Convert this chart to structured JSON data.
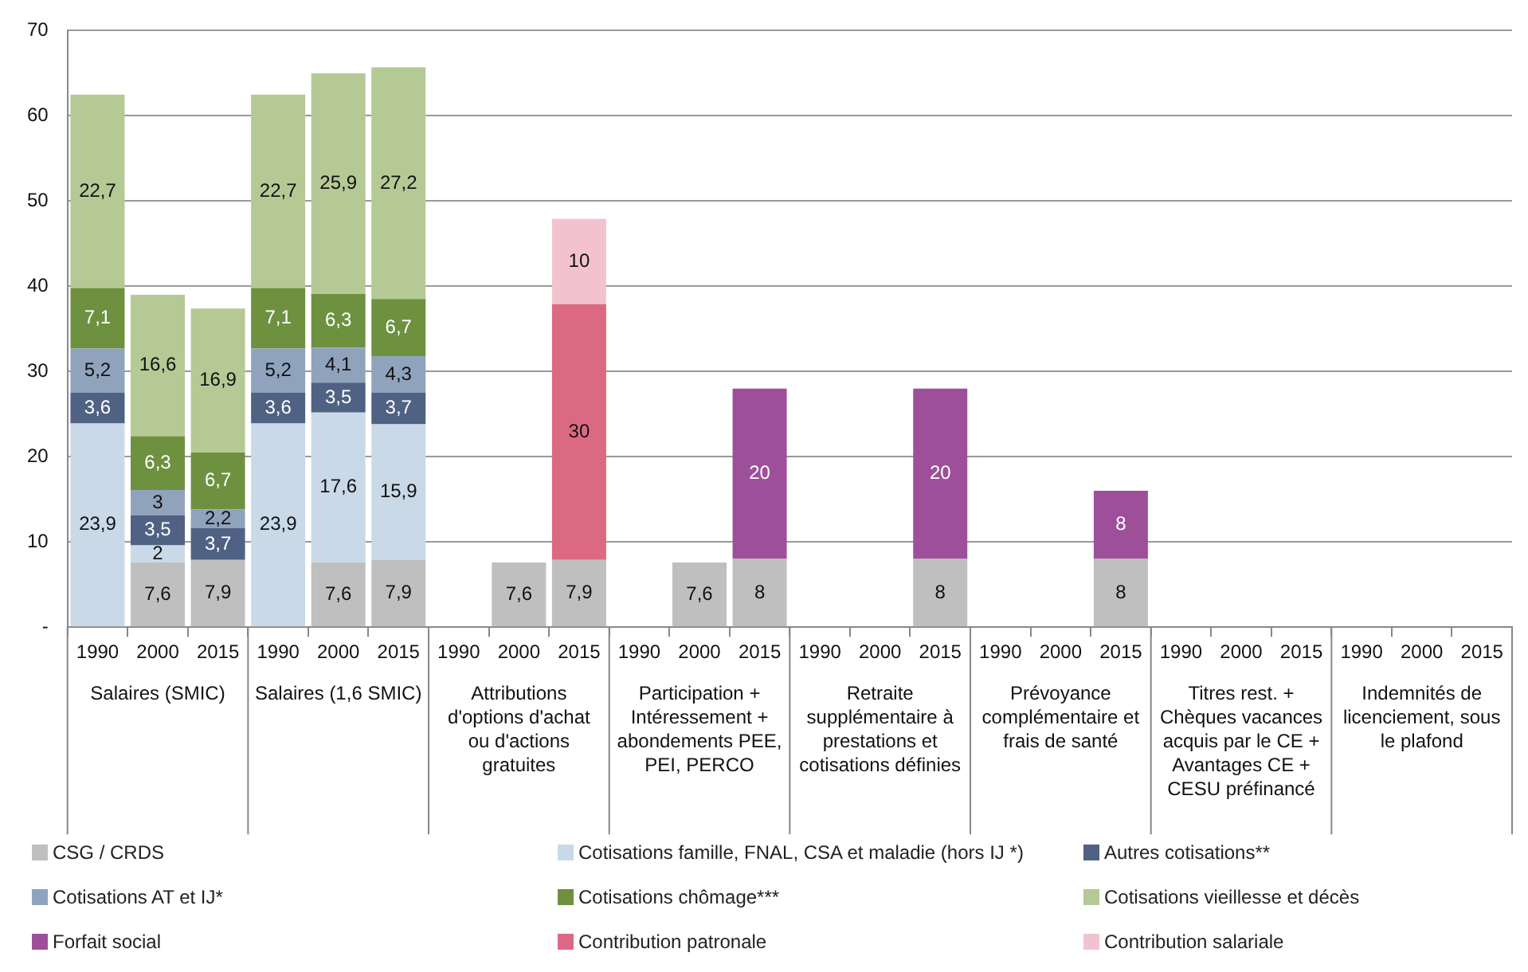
{
  "chart_data": {
    "type": "bar",
    "stacked": true,
    "grid": "y",
    "legend": "bottom",
    "categories": [
      "1990",
      "2000",
      "2015",
      "1990",
      "2000",
      "2015",
      "1990",
      "2000",
      "2015",
      "1990",
      "2000",
      "2015",
      "1990",
      "2000",
      "2015",
      "1990",
      "2000",
      "2015",
      "1990",
      "2000",
      "2015",
      "1990",
      "2000",
      "2015"
    ],
    "ylim": [
      0,
      70
    ],
    "yticks": [
      {
        "value": 0,
        "label": "-"
      },
      10,
      20,
      30,
      40,
      50,
      60,
      70
    ],
    "series": [
      {
        "name": "CSG / CRDS",
        "color": "#bfbfbf",
        "values": [
          null,
          7.6,
          7.9,
          null,
          7.6,
          7.9,
          null,
          7.6,
          7.9,
          null,
          7.6,
          8,
          null,
          null,
          8,
          null,
          null,
          8,
          null,
          null,
          null,
          null,
          null,
          null
        ],
        "value_labels": [
          null,
          "7,6",
          "7,9",
          null,
          "7,6",
          "7,9",
          null,
          "7,6",
          "7,9",
          null,
          "7,6",
          "8",
          null,
          null,
          "8",
          null,
          null,
          "8",
          null,
          null,
          null,
          null,
          null,
          null
        ]
      },
      {
        "name": "Cotisations famille, FNAL, CSA et maladie (hors  IJ *)",
        "color": "#c9d9e8",
        "values": [
          23.9,
          2,
          null,
          23.9,
          17.6,
          15.9,
          null,
          null,
          null,
          null,
          null,
          null,
          null,
          null,
          null,
          null,
          null,
          null,
          null,
          null,
          null,
          null,
          null,
          null
        ],
        "value_labels": [
          "23,9",
          "2",
          null,
          "23,9",
          "17,6",
          "15,9",
          null,
          null,
          null,
          null,
          null,
          null,
          null,
          null,
          null,
          null,
          null,
          null,
          null,
          null,
          null,
          null,
          null,
          null
        ]
      },
      {
        "name": "Autres cotisations**",
        "color": "#4f6283",
        "values": [
          3.6,
          3.5,
          3.7,
          3.6,
          3.5,
          3.7,
          null,
          null,
          null,
          null,
          null,
          null,
          null,
          null,
          null,
          null,
          null,
          null,
          null,
          null,
          null,
          null,
          null,
          null
        ],
        "value_labels": [
          "3,6",
          "3,5",
          "3,7",
          "3,6",
          "3,5",
          "3,7",
          null,
          null,
          null,
          null,
          null,
          null,
          null,
          null,
          null,
          null,
          null,
          null,
          null,
          null,
          null,
          null,
          null,
          null
        ]
      },
      {
        "name": "Cotisations AT et IJ*",
        "color": "#8fa3bd",
        "values": [
          5.2,
          3,
          2.2,
          5.2,
          4.1,
          4.3,
          null,
          null,
          null,
          null,
          null,
          null,
          null,
          null,
          null,
          null,
          null,
          null,
          null,
          null,
          null,
          null,
          null,
          null
        ],
        "value_labels": [
          "5,2",
          "3",
          "2,2",
          "5,2",
          "4,1",
          "4,3",
          null,
          null,
          null,
          null,
          null,
          null,
          null,
          null,
          null,
          null,
          null,
          null,
          null,
          null,
          null,
          null,
          null,
          null
        ]
      },
      {
        "name": "Cotisations chômage***",
        "color": "#6e9140",
        "values": [
          7.1,
          6.3,
          6.7,
          7.1,
          6.3,
          6.7,
          null,
          null,
          null,
          null,
          null,
          null,
          null,
          null,
          null,
          null,
          null,
          null,
          null,
          null,
          null,
          null,
          null,
          null
        ],
        "value_labels": [
          "7,1",
          "6,3",
          "6,7",
          "7,1",
          "6,3",
          "6,7",
          null,
          null,
          null,
          null,
          null,
          null,
          null,
          null,
          null,
          null,
          null,
          null,
          null,
          null,
          null,
          null,
          null,
          null
        ]
      },
      {
        "name": "Cotisations vieillesse et décès",
        "color": "#b5c995",
        "values": [
          22.7,
          16.6,
          16.9,
          22.7,
          25.9,
          27.2,
          null,
          null,
          null,
          null,
          null,
          null,
          null,
          null,
          null,
          null,
          null,
          null,
          null,
          null,
          null,
          null,
          null,
          null
        ],
        "value_labels": [
          "22,7",
          "16,6",
          "16,9",
          "22,7",
          "25,9",
          "27,2",
          null,
          null,
          null,
          null,
          null,
          null,
          null,
          null,
          null,
          null,
          null,
          null,
          null,
          null,
          null,
          null,
          null,
          null
        ]
      },
      {
        "name": "Forfait social",
        "color": "#9e4f9a",
        "values": [
          null,
          null,
          null,
          null,
          null,
          null,
          null,
          null,
          null,
          null,
          null,
          20,
          null,
          null,
          20,
          null,
          null,
          8,
          null,
          null,
          null,
          null,
          null,
          null
        ],
        "value_labels": [
          null,
          null,
          null,
          null,
          null,
          null,
          null,
          null,
          null,
          null,
          null,
          "20",
          null,
          null,
          "20",
          null,
          null,
          "8",
          null,
          null,
          null,
          null,
          null,
          null
        ]
      },
      {
        "name": "Contribution patronale",
        "color": "#dc6982",
        "values": [
          null,
          null,
          null,
          null,
          null,
          null,
          null,
          null,
          30,
          null,
          null,
          null,
          null,
          null,
          null,
          null,
          null,
          null,
          null,
          null,
          null,
          null,
          null,
          null
        ],
        "value_labels": [
          null,
          null,
          null,
          null,
          null,
          null,
          null,
          null,
          "30",
          null,
          null,
          null,
          null,
          null,
          null,
          null,
          null,
          null,
          null,
          null,
          null,
          null,
          null,
          null
        ]
      },
      {
        "name": "Contribution salariale",
        "color": "#f2c3ce",
        "values": [
          null,
          null,
          null,
          null,
          null,
          null,
          null,
          null,
          10,
          null,
          null,
          null,
          null,
          null,
          null,
          null,
          null,
          null,
          null,
          null,
          null,
          null,
          null,
          null
        ],
        "value_labels": [
          null,
          null,
          null,
          null,
          null,
          null,
          null,
          null,
          "10",
          null,
          null,
          null,
          null,
          null,
          null,
          null,
          null,
          null,
          null,
          null,
          null,
          null,
          null,
          null
        ]
      }
    ],
    "annotations": [
      "Salaires (SMIC)",
      "Salaires (1,6 SMIC)",
      "Attributions d'options d'achat ou d'actions gratuites",
      "Participation + Intéressement + abondements PEE, PEI, PERCO",
      "Retraite supplémentaire à prestations et cotisations définies",
      "Prévoyance complémentaire et frais de santé",
      "Titres rest. + Chèques vacances acquis par le CE + Avantages CE + CESU préfinancé",
      "Indemnités de licenciement, sous le plafond"
    ]
  }
}
